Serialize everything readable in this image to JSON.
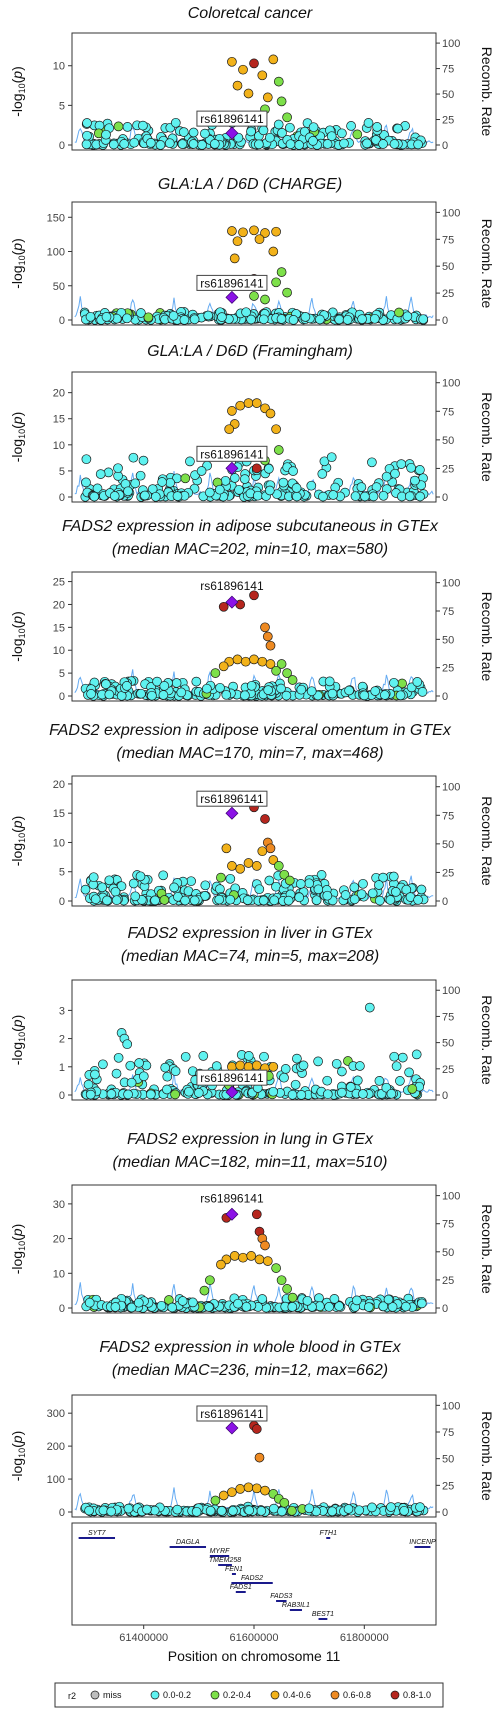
{
  "colors": {
    "miss": "#bdbdbd",
    "r0": "#5ff2f0",
    "r1": "#7de04a",
    "r2": "#f2b21a",
    "r3": "#ee8a22",
    "r4": "#b5261e",
    "lead": "#8b12e6",
    "recomb": "#4a9cf0",
    "gene": "#1a1a8c"
  },
  "chart_data": [
    {
      "type": "scatter",
      "title": [
        "Coloretcal cancer"
      ],
      "ylabel": "-log10(p)",
      "y2label": "Recomb. Rate",
      "yticks": [
        0,
        5,
        10
      ],
      "ylim": [
        0,
        13.5
      ],
      "y2ticks": [
        0,
        25,
        50,
        75,
        100
      ],
      "lead_snp": "rs61896141",
      "lead_x": 61560000,
      "lead_y": 1.5,
      "background_max": 3.0,
      "peak": [
        {
          "r2": "r4",
          "x": 61600000,
          "y": 10.3
        },
        {
          "r2": "r2",
          "x": 61560000,
          "y": 10.5
        },
        {
          "r2": "r2",
          "x": 61580000,
          "y": 9.5
        },
        {
          "r2": "r2",
          "x": 61615000,
          "y": 8.8
        },
        {
          "r2": "r2",
          "x": 61635000,
          "y": 10.8
        },
        {
          "r2": "r2",
          "x": 61570000,
          "y": 7.5
        },
        {
          "r2": "r2",
          "x": 61590000,
          "y": 6.5
        },
        {
          "r2": "r2",
          "x": 61625000,
          "y": 6.0
        },
        {
          "r2": "r1",
          "x": 61645000,
          "y": 8.0
        },
        {
          "r2": "r1",
          "x": 61650000,
          "y": 5.5
        },
        {
          "r2": "r1",
          "x": 61620000,
          "y": 4.5
        },
        {
          "r2": "r1",
          "x": 61660000,
          "y": 3.5
        },
        {
          "r2": "r1",
          "x": 61600000,
          "y": 3.0
        }
      ]
    },
    {
      "type": "scatter",
      "title": [
        "GLA:LA / D6D (CHARGE)"
      ],
      "ylabel": "-log10(p)",
      "y2label": "Recomb. Rate",
      "yticks": [
        0,
        50,
        100,
        150
      ],
      "ylim": [
        0,
        165
      ],
      "y2ticks": [
        0,
        25,
        50,
        75,
        100
      ],
      "lead_snp": "rs61896141",
      "lead_x": 61560000,
      "lead_y": 33,
      "background_max": 12,
      "peak": [
        {
          "r2": "r4",
          "x": 61600000,
          "y": 60
        },
        {
          "r2": "r4",
          "x": 61610000,
          "y": 55
        },
        {
          "r2": "r2",
          "x": 61560000,
          "y": 130
        },
        {
          "r2": "r2",
          "x": 61580000,
          "y": 128
        },
        {
          "r2": "r2",
          "x": 61600000,
          "y": 131
        },
        {
          "r2": "r2",
          "x": 61620000,
          "y": 127
        },
        {
          "r2": "r2",
          "x": 61640000,
          "y": 129
        },
        {
          "r2": "r2",
          "x": 61570000,
          "y": 115
        },
        {
          "r2": "r2",
          "x": 61610000,
          "y": 118
        },
        {
          "r2": "r2",
          "x": 61635000,
          "y": 100
        },
        {
          "r2": "r2",
          "x": 61565000,
          "y": 90
        },
        {
          "r2": "r1",
          "x": 61650000,
          "y": 70
        },
        {
          "r2": "r1",
          "x": 61640000,
          "y": 55
        },
        {
          "r2": "r1",
          "x": 61660000,
          "y": 40
        },
        {
          "r2": "r1",
          "x": 61600000,
          "y": 35
        },
        {
          "r2": "r1",
          "x": 61620000,
          "y": 30
        }
      ]
    },
    {
      "type": "scatter",
      "title": [
        "GLA:LA / D6D (Framingham)"
      ],
      "ylabel": "-log10(p)",
      "y2label": "Recomb. Rate",
      "yticks": [
        0,
        5,
        10,
        15,
        20
      ],
      "ylim": [
        0,
        23
      ],
      "y2ticks": [
        0,
        25,
        50,
        75,
        100
      ],
      "lead_snp": "rs61896141",
      "lead_x": 61560000,
      "lead_y": 5.5,
      "background_max": 8.5,
      "peak": [
        {
          "r2": "r4",
          "x": 61605000,
          "y": 5.5
        },
        {
          "r2": "r2",
          "x": 61560000,
          "y": 16.5
        },
        {
          "r2": "r2",
          "x": 61575000,
          "y": 17.5
        },
        {
          "r2": "r2",
          "x": 61590000,
          "y": 18.0
        },
        {
          "r2": "r2",
          "x": 61605000,
          "y": 18.0
        },
        {
          "r2": "r2",
          "x": 61620000,
          "y": 17.0
        },
        {
          "r2": "r2",
          "x": 61630000,
          "y": 16.0
        },
        {
          "r2": "r2",
          "x": 61565000,
          "y": 14.0
        },
        {
          "r2": "r2",
          "x": 61555000,
          "y": 13.0
        },
        {
          "r2": "r2",
          "x": 61640000,
          "y": 13.0
        },
        {
          "r2": "r1",
          "x": 61645000,
          "y": 9.0
        },
        {
          "r2": "r1",
          "x": 61620000,
          "y": 7.0
        }
      ]
    },
    {
      "type": "scatter",
      "title": [
        "FADS2 expression in adipose subcutaneous in GTEx",
        "(median MAC=202, min=10, max=580)"
      ],
      "ylabel": "-log10(p)",
      "y2label": "Recomb. Rate",
      "yticks": [
        0,
        5,
        10,
        15,
        20,
        25
      ],
      "ylim": [
        0,
        26
      ],
      "y2ticks": [
        0,
        25,
        50,
        75,
        100
      ],
      "lead_snp": "rs61896141",
      "lead_snp_above": true,
      "lead_x": 61560000,
      "lead_y": 20.5,
      "background_max": 3.5,
      "peak": [
        {
          "r2": "r4",
          "x": 61545000,
          "y": 19.5
        },
        {
          "r2": "r4",
          "x": 61575000,
          "y": 20.0
        },
        {
          "r2": "r4",
          "x": 61600000,
          "y": 22.0
        },
        {
          "r2": "r3",
          "x": 61620000,
          "y": 15.0
        },
        {
          "r2": "r3",
          "x": 61625000,
          "y": 13.0
        },
        {
          "r2": "r3",
          "x": 61630000,
          "y": 11.0
        },
        {
          "r2": "r2",
          "x": 61555000,
          "y": 7.5
        },
        {
          "r2": "r2",
          "x": 61570000,
          "y": 8.0
        },
        {
          "r2": "r2",
          "x": 61585000,
          "y": 7.5
        },
        {
          "r2": "r2",
          "x": 61600000,
          "y": 8.0
        },
        {
          "r2": "r2",
          "x": 61615000,
          "y": 7.5
        },
        {
          "r2": "r2",
          "x": 61630000,
          "y": 7.0
        },
        {
          "r2": "r2",
          "x": 61545000,
          "y": 6.5
        },
        {
          "r2": "r1",
          "x": 61650000,
          "y": 7.0
        },
        {
          "r2": "r1",
          "x": 61660000,
          "y": 5.0
        },
        {
          "r2": "r1",
          "x": 61640000,
          "y": 5.5
        },
        {
          "r2": "r1",
          "x": 61670000,
          "y": 3.5
        },
        {
          "r2": "r1",
          "x": 61530000,
          "y": 5.0
        }
      ]
    },
    {
      "type": "scatter",
      "title": [
        "FADS2 expression in adipose visceral omentum in GTEx",
        "(median MAC=170, min=7, max=468)"
      ],
      "ylabel": "-log10(p)",
      "y2label": "Recomb. Rate",
      "yticks": [
        0,
        5,
        10,
        15,
        20
      ],
      "ylim": [
        0,
        20.5
      ],
      "y2ticks": [
        0,
        25,
        50,
        75,
        100
      ],
      "lead_snp": "rs61896141",
      "lead_x": 61560000,
      "lead_y": 15.0,
      "background_max": 5.0,
      "peak": [
        {
          "r2": "r4",
          "x": 61600000,
          "y": 16.0
        },
        {
          "r2": "r4",
          "x": 61620000,
          "y": 14.0
        },
        {
          "r2": "r3",
          "x": 61625000,
          "y": 10.0
        },
        {
          "r2": "r3",
          "x": 61630000,
          "y": 9.0
        },
        {
          "r2": "r2",
          "x": 61560000,
          "y": 6.0
        },
        {
          "r2": "r2",
          "x": 61575000,
          "y": 5.5
        },
        {
          "r2": "r2",
          "x": 61590000,
          "y": 6.5
        },
        {
          "r2": "r2",
          "x": 61605000,
          "y": 6.0
        },
        {
          "r2": "r2",
          "x": 61615000,
          "y": 8.5
        },
        {
          "r2": "r2",
          "x": 61635000,
          "y": 7.0
        },
        {
          "r2": "r2",
          "x": 61550000,
          "y": 9.0
        },
        {
          "r2": "r1",
          "x": 61645000,
          "y": 6.0
        },
        {
          "r2": "r1",
          "x": 61655000,
          "y": 4.5
        },
        {
          "r2": "r1",
          "x": 61665000,
          "y": 3.5
        },
        {
          "r2": "r1",
          "x": 61540000,
          "y": 4.0
        }
      ]
    },
    {
      "type": "scatter",
      "title": [
        "FADS2 expression in liver in GTEx",
        "(median MAC=74, min=5, max=208)"
      ],
      "ylabel": "-log10(p)",
      "y2label": "Recomb. Rate",
      "yticks": [
        0,
        1,
        2,
        3
      ],
      "ylim": [
        0,
        3.9
      ],
      "y2ticks": [
        0,
        25,
        50,
        75,
        100
      ],
      "lead_snp": "rs61896141",
      "lead_x": 61560000,
      "lead_y": 0.1,
      "background_max": 1.6,
      "peak": [
        {
          "r2": "r2",
          "x": 61560000,
          "y": 1.0
        },
        {
          "r2": "r2",
          "x": 61575000,
          "y": 1.05
        },
        {
          "r2": "r2",
          "x": 61590000,
          "y": 1.0
        },
        {
          "r2": "r2",
          "x": 61605000,
          "y": 1.05
        },
        {
          "r2": "r2",
          "x": 61620000,
          "y": 0.95
        },
        {
          "r2": "r2",
          "x": 61635000,
          "y": 1.0
        },
        {
          "r2": "r0",
          "x": 61360000,
          "y": 2.2
        },
        {
          "r2": "r0",
          "x": 61365000,
          "y": 2.0
        },
        {
          "r2": "r0",
          "x": 61370000,
          "y": 1.8
        },
        {
          "r2": "r0",
          "x": 61810000,
          "y": 3.1
        }
      ]
    },
    {
      "type": "scatter",
      "title": [
        "FADS2 expression in lung in GTEx",
        "(median MAC=182, min=11, max=510)"
      ],
      "ylabel": "-log10(p)",
      "y2label": "Recomb. Rate",
      "yticks": [
        0,
        10,
        20,
        30
      ],
      "ylim": [
        0,
        34
      ],
      "y2ticks": [
        0,
        25,
        50,
        75,
        100
      ],
      "lead_snp": "rs61896141",
      "lead_snp_above": true,
      "lead_x": 61560000,
      "lead_y": 27.0,
      "background_max": 3.0,
      "peak": [
        {
          "r2": "r4",
          "x": 61550000,
          "y": 26.0
        },
        {
          "r2": "r4",
          "x": 61605000,
          "y": 27.0
        },
        {
          "r2": "r4",
          "x": 61610000,
          "y": 22.0
        },
        {
          "r2": "r3",
          "x": 61615000,
          "y": 20.0
        },
        {
          "r2": "r3",
          "x": 61620000,
          "y": 18.0
        },
        {
          "r2": "r2",
          "x": 61550000,
          "y": 14.0
        },
        {
          "r2": "r2",
          "x": 61565000,
          "y": 15.0
        },
        {
          "r2": "r2",
          "x": 61580000,
          "y": 14.5
        },
        {
          "r2": "r2",
          "x": 61595000,
          "y": 15.0
        },
        {
          "r2": "r2",
          "x": 61610000,
          "y": 14.0
        },
        {
          "r2": "r2",
          "x": 61625000,
          "y": 13.5
        },
        {
          "r2": "r2",
          "x": 61540000,
          "y": 12.5
        },
        {
          "r2": "r1",
          "x": 61640000,
          "y": 11.5
        },
        {
          "r2": "r1",
          "x": 61650000,
          "y": 8.0
        },
        {
          "r2": "r1",
          "x": 61660000,
          "y": 5.5
        },
        {
          "r2": "r1",
          "x": 61670000,
          "y": 3.0
        },
        {
          "r2": "r1",
          "x": 61520000,
          "y": 8.0
        },
        {
          "r2": "r1",
          "x": 61510000,
          "y": 5.0
        }
      ]
    },
    {
      "type": "scatter",
      "title": [
        "FADS2 expression in whole blood in GTEx",
        "(median MAC=236, min=12, max=662)"
      ],
      "ylabel": "-log10(p)",
      "y2label": "Recomb. Rate",
      "yticks": [
        0,
        100,
        200,
        300
      ],
      "ylim": [
        0,
        340
      ],
      "y2ticks": [
        0,
        25,
        50,
        75,
        100
      ],
      "lead_snp": "rs61896141",
      "lead_x": 61560000,
      "lead_y": 255,
      "background_max": 15,
      "peak": [
        {
          "r2": "r4",
          "x": 61600000,
          "y": 262
        },
        {
          "r2": "r4",
          "x": 61605000,
          "y": 252
        },
        {
          "r2": "r3",
          "x": 61610000,
          "y": 165
        },
        {
          "r2": "r2",
          "x": 61560000,
          "y": 60
        },
        {
          "r2": "r2",
          "x": 61575000,
          "y": 70
        },
        {
          "r2": "r2",
          "x": 61590000,
          "y": 75
        },
        {
          "r2": "r2",
          "x": 61605000,
          "y": 72
        },
        {
          "r2": "r2",
          "x": 61620000,
          "y": 65
        },
        {
          "r2": "r2",
          "x": 61545000,
          "y": 50
        },
        {
          "r2": "r1",
          "x": 61635000,
          "y": 55
        },
        {
          "r2": "r1",
          "x": 61645000,
          "y": 40
        },
        {
          "r2": "r1",
          "x": 61655000,
          "y": 28
        },
        {
          "r2": "r1",
          "x": 61530000,
          "y": 35
        }
      ]
    }
  ],
  "genes": [
    {
      "name": "SYT7",
      "start": 61282000,
      "end": 61348000,
      "row": 0
    },
    {
      "name": "DAGLA",
      "start": 61447000,
      "end": 61513000,
      "row": 1
    },
    {
      "name": "FTH1",
      "start": 61731000,
      "end": 61735000,
      "row": 0
    },
    {
      "name": "INCENP",
      "start": 61891000,
      "end": 61920000,
      "row": 1
    },
    {
      "name": "MYRF",
      "start": 61520000,
      "end": 61555000,
      "row": 2
    },
    {
      "name": "TMEM258",
      "start": 61535000,
      "end": 61560000,
      "row": 3
    },
    {
      "name": "FEN1",
      "start": 61560000,
      "end": 61565000,
      "row": 4
    },
    {
      "name": "FADS2",
      "start": 61559000,
      "end": 61634000,
      "row": 5
    },
    {
      "name": "FADS1",
      "start": 61567000,
      "end": 61585000,
      "row": 6
    },
    {
      "name": "FADS3",
      "start": 61640000,
      "end": 61659000,
      "row": 7
    },
    {
      "name": "RAB3IL1",
      "start": 61665000,
      "end": 61687000,
      "row": 8
    },
    {
      "name": "BEST1",
      "start": 61717000,
      "end": 61733000,
      "row": 9
    }
  ],
  "xaxis": {
    "label": "Position on chromosome 11",
    "ticks": [
      61400000,
      61600000,
      61800000
    ],
    "tick_labels": [
      "61400000",
      "61600000",
      "61800000"
    ],
    "xlim": [
      61270000,
      61930000
    ]
  },
  "legend": {
    "title": "r2",
    "items": [
      {
        "key": "miss",
        "label": "miss"
      },
      {
        "key": "r0",
        "label": "0.0-0.2"
      },
      {
        "key": "r1",
        "label": "0.2-0.4"
      },
      {
        "key": "r2",
        "label": "0.4-0.6"
      },
      {
        "key": "r3",
        "label": "0.6-0.8"
      },
      {
        "key": "r4",
        "label": "0.8-1.0"
      }
    ]
  }
}
